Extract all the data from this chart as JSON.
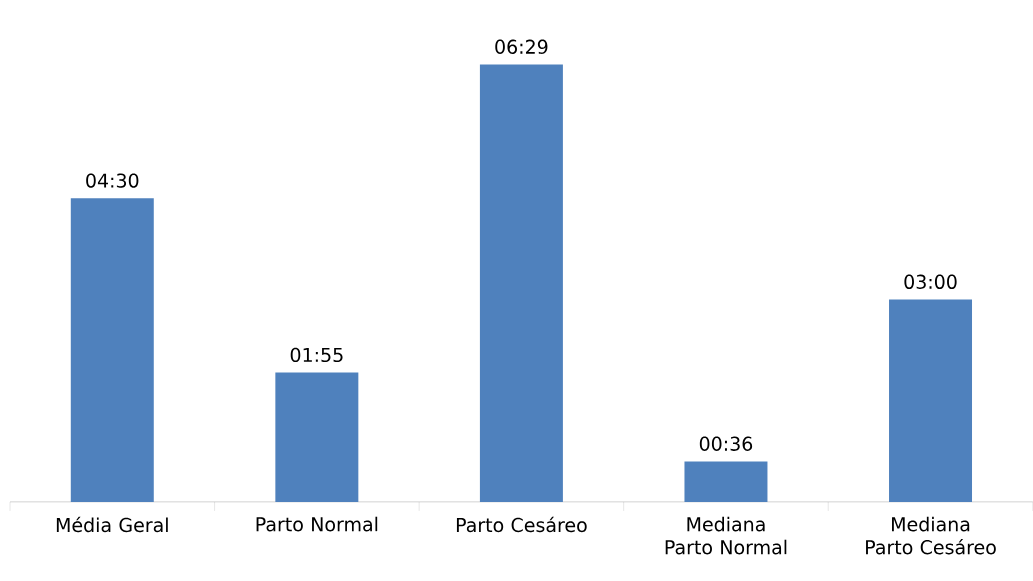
{
  "chart_data": {
    "type": "bar",
    "categories": [
      "Média Geral",
      "Parto Normal",
      "Parto Cesáreo",
      "Mediana Parto Normal",
      "Mediana Parto Cesáreo"
    ],
    "values": [
      4.5,
      1.9167,
      6.4833,
      0.6,
      3.0
    ],
    "value_labels": [
      "04:30",
      "01:55",
      "06:29",
      "00:36",
      "03:00"
    ],
    "color": "#4f81bd"
  }
}
